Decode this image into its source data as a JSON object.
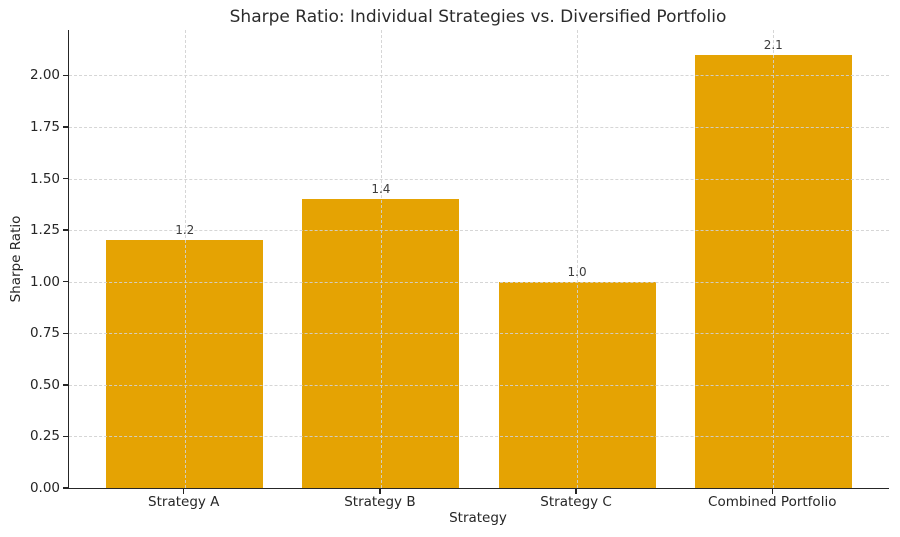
{
  "chart_data": {
    "type": "bar",
    "title": "Sharpe Ratio: Individual Strategies vs. Diversified Portfolio",
    "xlabel": "Strategy",
    "ylabel": "Sharpe Ratio",
    "categories": [
      "Strategy A",
      "Strategy B",
      "Strategy C",
      "Combined Portfolio"
    ],
    "values": [
      1.2,
      1.4,
      1.0,
      2.1
    ],
    "value_labels": [
      "1.2",
      "1.4",
      "1.0",
      "2.1"
    ],
    "yticks": [
      "0.00",
      "0.25",
      "0.50",
      "0.75",
      "1.00",
      "1.25",
      "1.50",
      "1.75",
      "2.00"
    ],
    "ylim": [
      0,
      2.22
    ],
    "bar_color": "#E5A303",
    "grid": true,
    "grid_style": "dashed",
    "grid_color": "#d2d2d2",
    "axis_color": "#262626",
    "text_color": "#262626",
    "background": "#ffffff",
    "legend": "none"
  }
}
